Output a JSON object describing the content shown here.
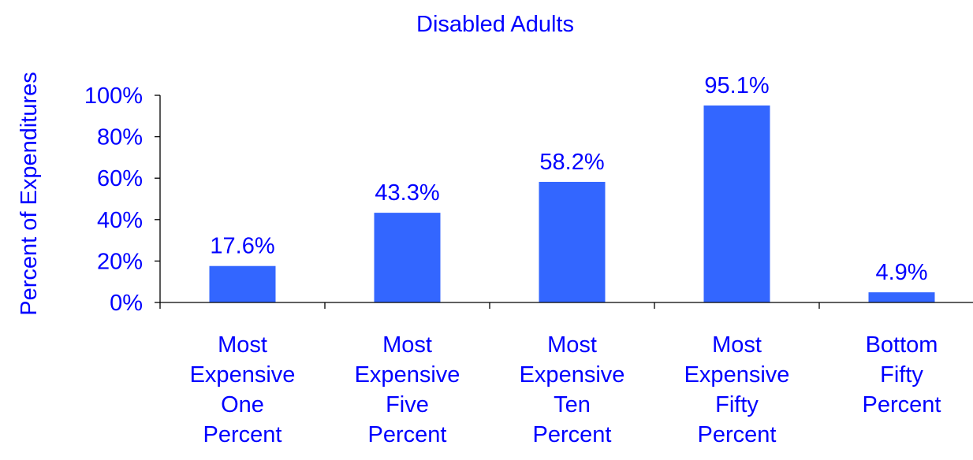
{
  "chart_data": {
    "type": "bar",
    "title": "Disabled Adults",
    "xlabel": "",
    "ylabel": "Percent of Expenditures",
    "categories": [
      [
        "Most",
        "Expensive",
        "One",
        "Percent"
      ],
      [
        "Most",
        "Expensive",
        "Five",
        "Percent"
      ],
      [
        "Most",
        "Expensive",
        "Ten",
        "Percent"
      ],
      [
        "Most",
        "Expensive",
        "Fifty",
        "Percent"
      ],
      [
        "Bottom",
        "Fifty",
        "Percent"
      ]
    ],
    "values": [
      17.6,
      43.3,
      58.2,
      95.1,
      4.9
    ],
    "data_labels": [
      "17.6%",
      "43.3%",
      "58.2%",
      "95.1%",
      "4.9%"
    ],
    "ylim": [
      0,
      100
    ],
    "yticks": [
      0,
      20,
      40,
      60,
      80,
      100
    ],
    "ytick_labels": [
      "0%",
      "20%",
      "40%",
      "60%",
      "80%",
      "100%"
    ],
    "grid": false,
    "legend": "none",
    "colors": {
      "bar": "#3366FF",
      "text": "#0000FF",
      "axis": "#000000"
    }
  }
}
